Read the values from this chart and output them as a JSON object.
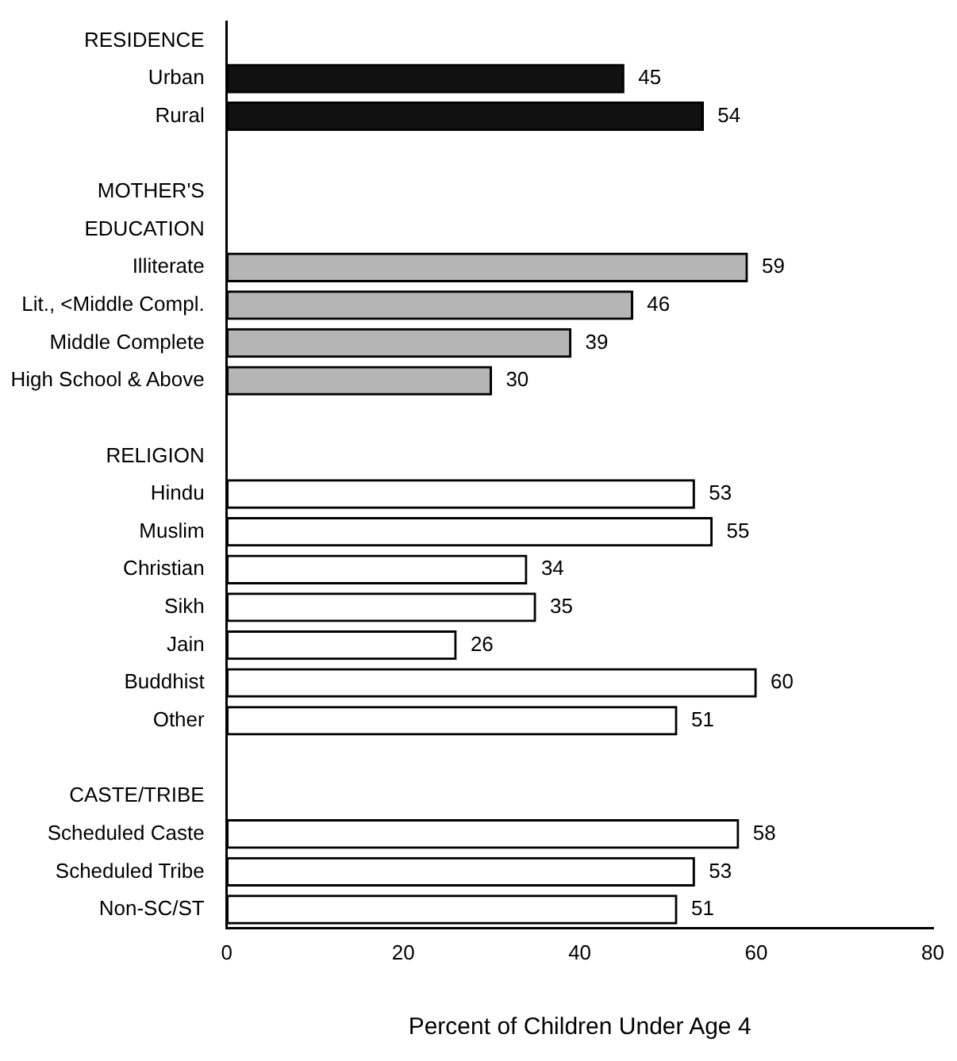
{
  "chart_data": {
    "type": "bar",
    "orientation": "horizontal",
    "xlabel": "Percent of Children Under Age 4",
    "categories": [
      "RESIDENCE",
      "Urban",
      "Rural",
      null,
      "MOTHER'S",
      "EDUCATION",
      "Illiterate",
      "Lit., <Middle Compl.",
      "Middle Complete",
      "High School & Above",
      null,
      "RELIGION",
      "Hindu",
      "Muslim",
      "Christian",
      "Sikh",
      "Jain",
      "Buddhist",
      "Other",
      null,
      "CASTE/TRIBE",
      "Scheduled Caste",
      "Scheduled Tribe",
      "Non-SC/ST"
    ],
    "values": [
      null,
      45,
      54,
      null,
      null,
      null,
      59,
      46,
      39,
      30,
      null,
      null,
      53,
      55,
      34,
      35,
      26,
      60,
      51,
      null,
      null,
      58,
      53,
      51
    ],
    "colors": [
      "#ffffff",
      "#111111",
      "#111111",
      "#ffffff",
      "#ffffff",
      "#ffffff",
      "#b5b5b5",
      "#b5b5b5",
      "#b5b5b5",
      "#b5b5b5",
      "#ffffff",
      "#ffffff",
      "#ffffff",
      "#ffffff",
      "#ffffff",
      "#ffffff",
      "#ffffff",
      "#ffffff",
      "#ffffff",
      "#ffffff",
      "#ffffff",
      "#ffffff",
      "#ffffff",
      "#ffffff"
    ],
    "xlim": [
      0,
      80
    ],
    "xticks": [
      0,
      20,
      40,
      60,
      80
    ],
    "grid": false,
    "legend": false,
    "data_labels": true
  }
}
